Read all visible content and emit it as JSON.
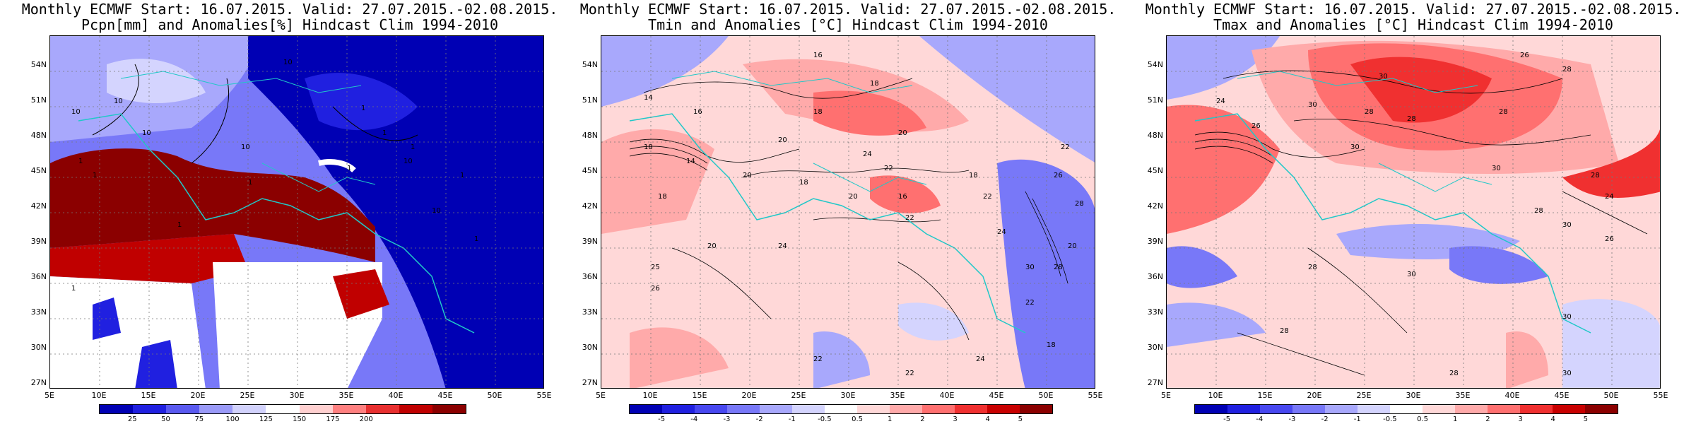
{
  "panels": [
    {
      "title1": "Monthly ECMWF Start: 16.07.2015. Valid: 27.07.2015.-02.08.2015.",
      "title2": "Pcpn[mm] and Anomalies[%] Hindcast Clim 1994-2010",
      "colorbar": {
        "labels": [
          "25",
          "50",
          "75",
          "100",
          "125",
          "150",
          "175",
          "200"
        ],
        "colors": [
          "#0000b4",
          "#2020e0",
          "#5a5af0",
          "#9a9af8",
          "#d2d2fc",
          "#ffffff",
          "#ffd0d0",
          "#ff8080",
          "#e83030",
          "#c00000",
          "#8b0000"
        ]
      },
      "contour_labels": [
        "10",
        "10",
        "10",
        "10",
        "1",
        "1",
        "1",
        "1",
        "1",
        "10",
        "1",
        "10",
        "1",
        "1",
        "1",
        "10",
        "1",
        "1"
      ]
    },
    {
      "title1": "Monthly ECMWF Start: 16.07.2015. Valid: 27.07.2015.-02.08.2015.",
      "title2": "Tmin and Anomalies [°C] Hindcast Clim 1994-2010",
      "colorbar": {
        "labels": [
          "-5",
          "-4",
          "-3",
          "-2",
          "-1",
          "-0.5",
          "0.5",
          "1",
          "2",
          "3",
          "4",
          "5"
        ],
        "colors": [
          "#0000b4",
          "#2020e0",
          "#4848f0",
          "#7878f8",
          "#a8a8fc",
          "#d4d4fe",
          "#ffffff",
          "#ffd8d8",
          "#ffaaaa",
          "#ff7070",
          "#f03030",
          "#c80000",
          "#8b0000"
        ]
      },
      "contour_labels": [
        "16",
        "14",
        "18",
        "16",
        "18",
        "20",
        "18",
        "20",
        "24",
        "22",
        "14",
        "20",
        "18",
        "20",
        "16",
        "22",
        "18",
        "25",
        "20",
        "26",
        "24",
        "18",
        "22",
        "24",
        "30",
        "22",
        "20",
        "22",
        "26",
        "28",
        "28",
        "24",
        "22",
        "22",
        "18"
      ]
    },
    {
      "title1": "Monthly ECMWF Start: 16.07.2015. Valid: 27.07.2015.-02.08.2015.",
      "title2": "Tmax and Anomalies [°C] Hindcast Clim 1994-2010",
      "colorbar": {
        "labels": [
          "-5",
          "-4",
          "-3",
          "-2",
          "-1",
          "-0.5",
          "0.5",
          "1",
          "2",
          "3",
          "4",
          "5"
        ],
        "colors": [
          "#0000b4",
          "#2020e0",
          "#4848f0",
          "#7878f8",
          "#a8a8fc",
          "#d4d4fe",
          "#ffffff",
          "#ffd8d8",
          "#ffaaaa",
          "#ff7070",
          "#f03030",
          "#c80000",
          "#8b0000"
        ]
      },
      "contour_labels": [
        "26",
        "28",
        "30",
        "28",
        "24",
        "30",
        "28",
        "26",
        "30",
        "28",
        "30",
        "28",
        "24",
        "28",
        "30",
        "26",
        "28",
        "30",
        "28",
        "30",
        "28",
        "30"
      ]
    }
  ],
  "axes": {
    "lat_labels": [
      "54N",
      "51N",
      "48N",
      "45N",
      "42N",
      "39N",
      "36N",
      "33N",
      "30N",
      "27N"
    ],
    "lon_labels": [
      "5E",
      "10E",
      "15E",
      "20E",
      "25E",
      "30E",
      "35E",
      "40E",
      "45E",
      "50E",
      "55E"
    ]
  }
}
